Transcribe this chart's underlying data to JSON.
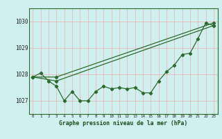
{
  "title": "Graphe pression niveau de la mer (hPa)",
  "bg_color": "#cff0ee",
  "grid_color": "#b8e0dc",
  "line_color": "#2d6a2d",
  "xlim": [
    -0.5,
    23.5
  ],
  "ylim": [
    1026.5,
    1030.5
  ],
  "yticks": [
    1027,
    1028,
    1029,
    1030
  ],
  "xticks": [
    0,
    1,
    2,
    3,
    4,
    5,
    6,
    7,
    8,
    9,
    10,
    11,
    12,
    13,
    14,
    15,
    16,
    17,
    18,
    19,
    20,
    21,
    22,
    23
  ],
  "series1_x": [
    0,
    1,
    2,
    3,
    4,
    5,
    6,
    7,
    8,
    9,
    10,
    11,
    12,
    13,
    14,
    15,
    16,
    17,
    18,
    19,
    20,
    21,
    22,
    23
  ],
  "series1_y": [
    1027.9,
    1028.05,
    1027.75,
    1027.55,
    1027.0,
    1027.35,
    1027.0,
    1027.0,
    1027.35,
    1027.55,
    1027.45,
    1027.5,
    1027.45,
    1027.5,
    1027.3,
    1027.3,
    1027.75,
    1028.1,
    1028.35,
    1028.75,
    1028.8,
    1029.35,
    1029.95,
    1029.85
  ],
  "series2_x": [
    0,
    3,
    23
  ],
  "series2_y": [
    1027.9,
    1027.9,
    1029.95
  ],
  "series3_x": [
    0,
    3,
    23
  ],
  "series3_y": [
    1027.9,
    1027.75,
    1029.85
  ]
}
